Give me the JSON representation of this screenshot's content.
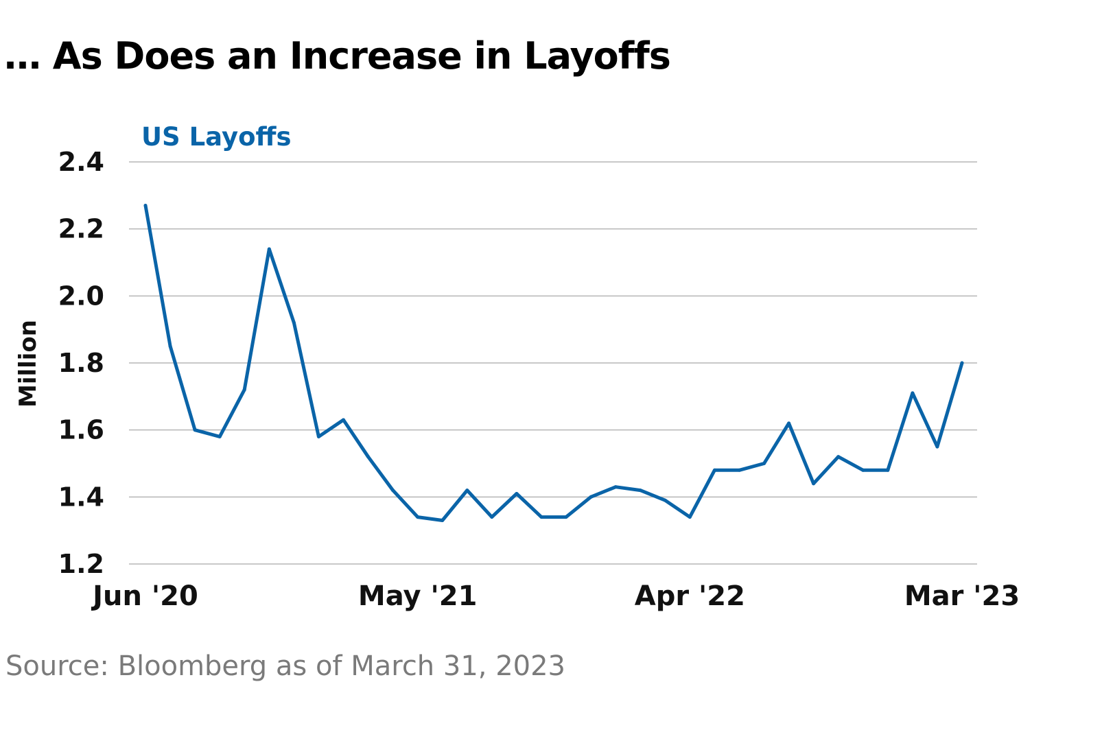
{
  "title": "… As Does an Increase in Layoffs",
  "source": "Source: Bloomberg as of March 31, 2023",
  "colors": {
    "line": "#0a64a8",
    "grid": "#b5b5b5",
    "axis_text": "#111111",
    "source_text": "#7a7a7a"
  },
  "chart_data": {
    "type": "line",
    "title": "… As Does an Increase in Layoffs",
    "xlabel": "",
    "ylabel": "Million",
    "ylim": [
      1.2,
      2.4
    ],
    "yticks": [
      "1.2",
      "1.4",
      "1.6",
      "1.8",
      "2.0",
      "2.2",
      "2.4"
    ],
    "xtick_labels": [
      "Jun '20",
      "May '21",
      "Apr '22",
      "Mar '23"
    ],
    "xtick_indices": [
      0,
      11,
      22,
      33
    ],
    "grid": true,
    "x": [
      "Jun '20",
      "Jul '20",
      "Aug '20",
      "Sep '20",
      "Oct '20",
      "Nov '20",
      "Dec '20",
      "Jan '21",
      "Feb '21",
      "Mar '21",
      "Apr '21",
      "May '21",
      "Jun '21",
      "Jul '21",
      "Aug '21",
      "Sep '21",
      "Oct '21",
      "Nov '21",
      "Dec '21",
      "Jan '22",
      "Feb '22",
      "Mar '22",
      "Apr '22",
      "May '22",
      "Jun '22",
      "Jul '22",
      "Aug '22",
      "Sep '22",
      "Oct '22",
      "Nov '22",
      "Dec '22",
      "Jan '23",
      "Feb '23",
      "Mar '23"
    ],
    "series": [
      {
        "name": "US Layoffs",
        "values": [
          2.27,
          1.85,
          1.6,
          1.58,
          1.72,
          2.14,
          1.92,
          1.58,
          1.63,
          1.52,
          1.42,
          1.34,
          1.33,
          1.42,
          1.34,
          1.41,
          1.34,
          1.34,
          1.4,
          1.43,
          1.42,
          1.39,
          1.34,
          1.48,
          1.48,
          1.5,
          1.62,
          1.44,
          1.52,
          1.48,
          1.48,
          1.71,
          1.55,
          1.8
        ]
      }
    ]
  }
}
